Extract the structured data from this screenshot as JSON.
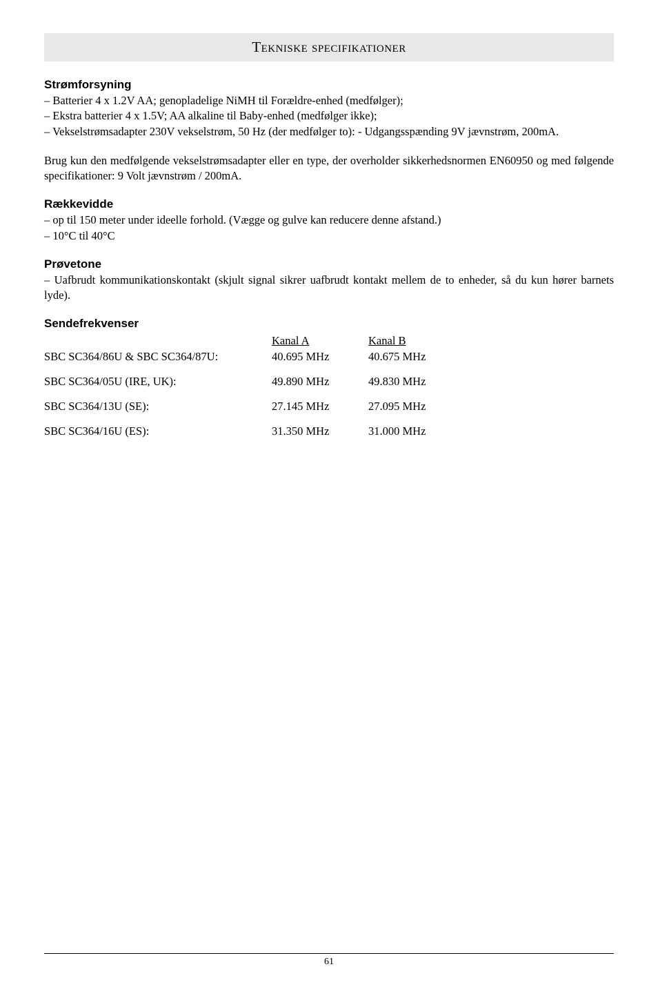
{
  "header": {
    "title": "Tekniske specifikationer"
  },
  "stromforsyning": {
    "heading": "Strømforsyning",
    "lines": [
      "– Batterier 4 x 1.2V AA; genopladelige NiMH til Forældre-enhed (medfølger);",
      "– Ekstra batterier 4 x 1.5V; AA alkaline til Baby-enhed (medfølger ikke);",
      "– Vekselstrømsadapter 230V vekselstrøm, 50 Hz (der medfølger to): - Udgangsspænding 9V jævnstrøm, 200mA."
    ],
    "para2": "Brug kun den medfølgende vekselstrømsadapter eller en type, der overholder sikkerhedsnormen EN60950 og med følgende specifikationer: 9 Volt jævnstrøm / 200mA."
  },
  "raekkevidde": {
    "heading": "Rækkevidde",
    "lines": [
      "– op til 150 meter under ideelle forhold. (Vægge og gulve kan reducere denne afstand.)",
      "– 10°C til 40°C"
    ]
  },
  "provetone": {
    "heading": "Prøvetone",
    "text": "– Uafbrudt kommunikationskontakt (skjult signal sikrer uafbrudt kontakt mellem de to enheder, så du kun hører barnets lyde)."
  },
  "sendefrekvenser": {
    "heading": "Sendefrekvenser",
    "header_row": {
      "col0": "",
      "col1": "Kanal A",
      "col2": "Kanal B"
    },
    "rows": [
      {
        "col0": "SBC SC364/86U & SBC SC364/87U:",
        "col1": "40.695 MHz",
        "col2": "40.675 MHz"
      },
      {
        "col0": "SBC SC364/05U (IRE, UK):",
        "col1": "49.890 MHz",
        "col2": "49.830 MHz"
      },
      {
        "col0": "SBC SC364/13U (SE):",
        "col1": "27.145 MHz",
        "col2": "27.095 MHz"
      },
      {
        "col0": "SBC SC364/16U (ES):",
        "col1": "31.350 MHz",
        "col2": "31.000 MHz"
      }
    ]
  },
  "footer": {
    "page": "61"
  }
}
